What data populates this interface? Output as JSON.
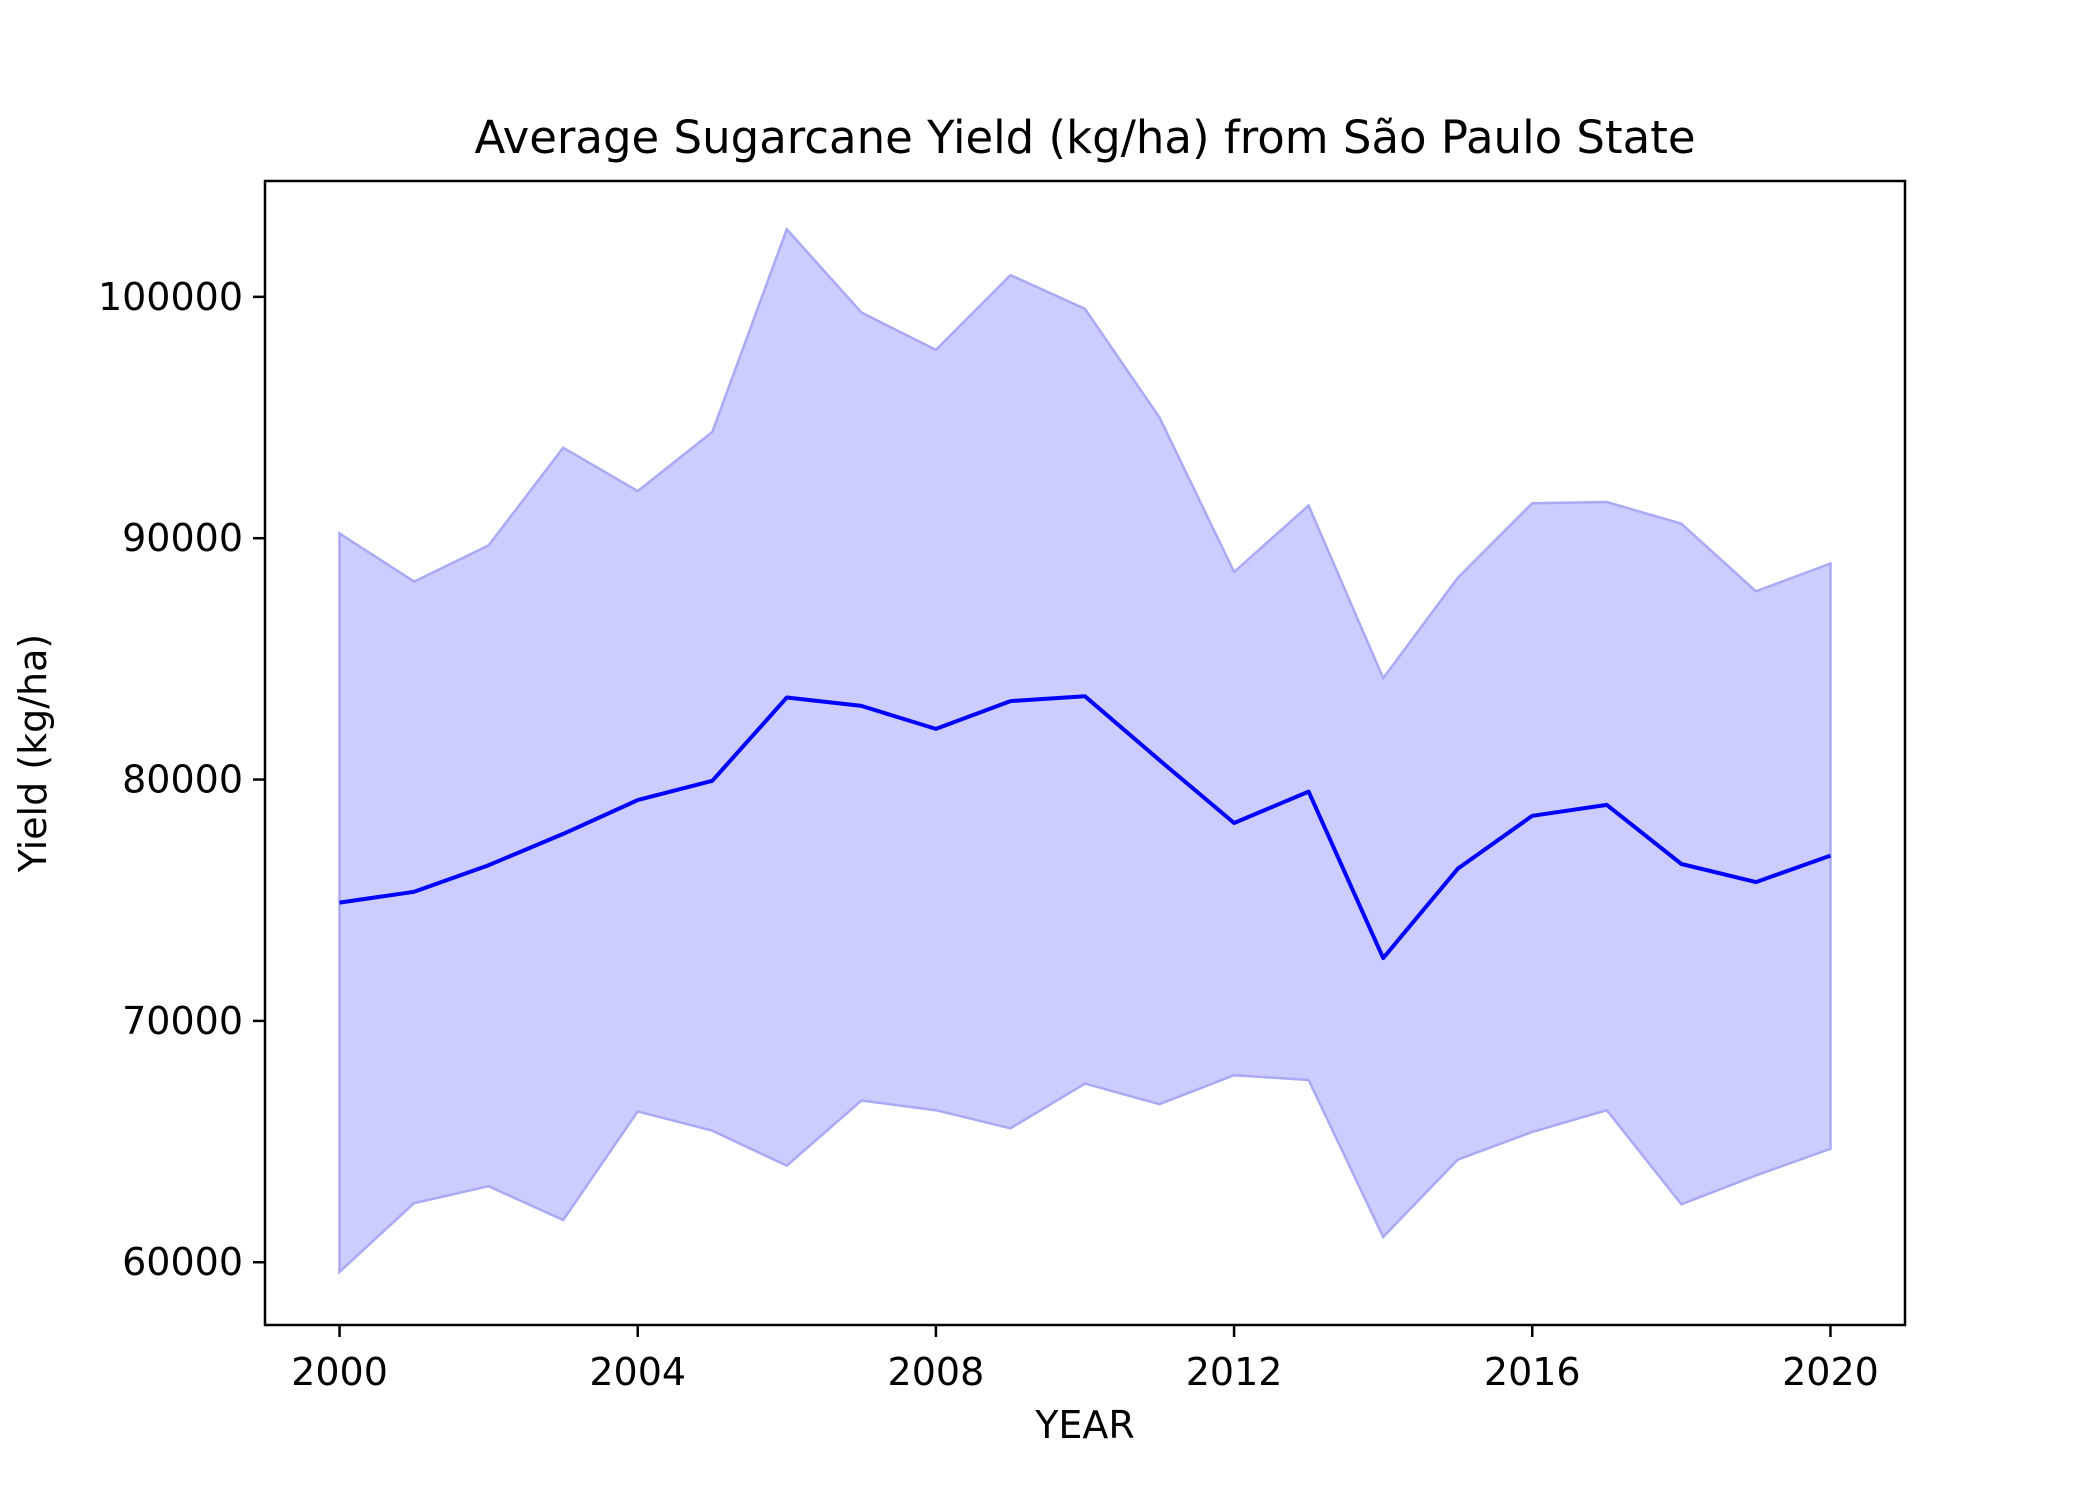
{
  "chart_data": {
    "type": "line",
    "title": "Average Sugarcane Yield (kg/ha) from São Paulo State",
    "xlabel": "YEAR",
    "ylabel": "Yield (kg/ha)",
    "xlim": [
      1999.0,
      2021.0
    ],
    "ylim": [
      57400,
      104800
    ],
    "x_ticks": [
      2000,
      2004,
      2008,
      2012,
      2016,
      2020
    ],
    "y_ticks": [
      60000,
      70000,
      80000,
      90000,
      100000
    ],
    "grid": false,
    "legend": "none",
    "x": [
      2000,
      2001,
      2002,
      2003,
      2004,
      2005,
      2006,
      2007,
      2008,
      2009,
      2010,
      2011,
      2012,
      2013,
      2014,
      2015,
      2016,
      2017,
      2018,
      2019,
      2020
    ],
    "series": [
      {
        "values": [
          74900,
          75350,
          76450,
          77750,
          79150,
          79950,
          83400,
          83050,
          82100,
          83250,
          83450,
          80800,
          78200,
          79500,
          72600,
          76300,
          78500,
          78950,
          76500,
          75750,
          76850
        ],
        "lower": [
          59600,
          62450,
          63150,
          61750,
          66250,
          65450,
          64000,
          66700,
          66300,
          65550,
          67400,
          66550,
          67750,
          67550,
          61050,
          64250,
          65400,
          66300,
          62400,
          63600,
          64700
        ],
        "upper": [
          90200,
          88200,
          89700,
          93750,
          91950,
          94400,
          102800,
          99350,
          97800,
          100900,
          99500,
          95000,
          88600,
          91350,
          84200,
          88350,
          91450,
          91500,
          90600,
          87800,
          88950
        ],
        "line_color": "#0000ff",
        "band_color": "#ccccff"
      }
    ]
  }
}
